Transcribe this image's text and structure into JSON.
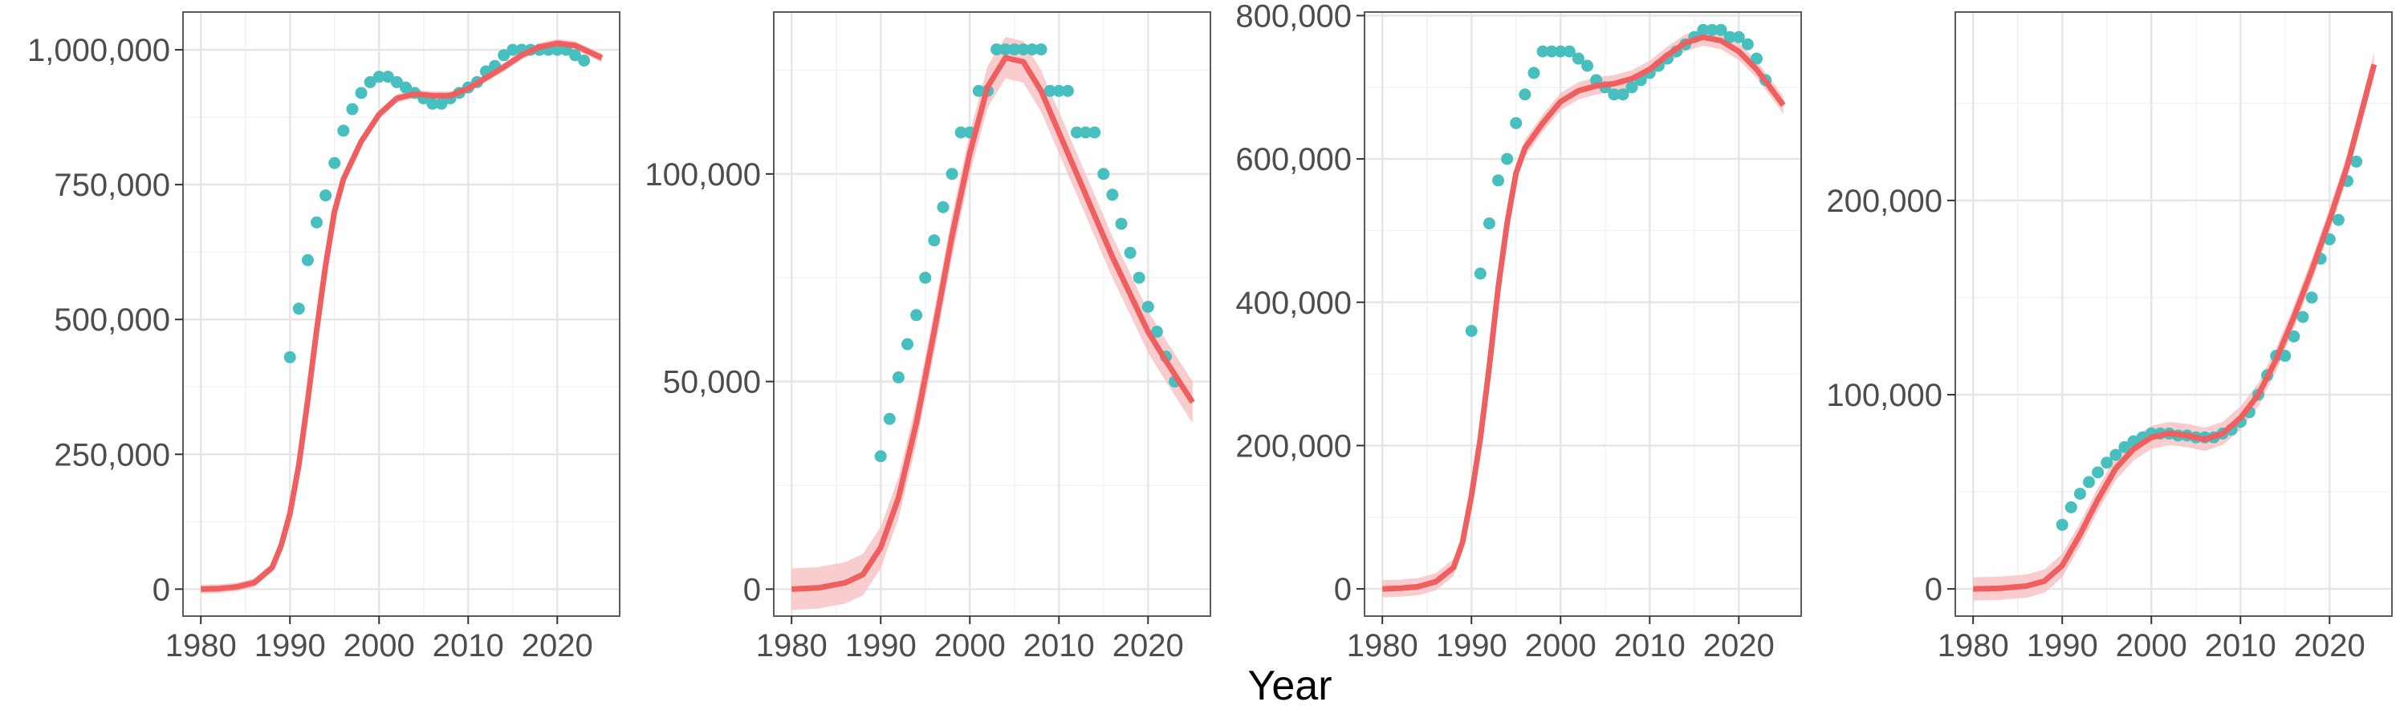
{
  "figure": {
    "xlabel": "Year"
  },
  "colors": {
    "fit_line": "#EF5F5F",
    "fit_band": "#F7BCBC",
    "points": "#48BFBF",
    "grid_major": "#E6E6E6",
    "grid_minor": "#F3F3F3",
    "panel_border": "#5A5A5A"
  },
  "chart_data": [
    {
      "type": "scatter",
      "title": "",
      "xlabel": "",
      "ylabel": "",
      "xlim": [
        1978,
        2027
      ],
      "ylim": [
        -50000,
        1070000
      ],
      "x_ticks": [
        1980,
        1990,
        2000,
        2010,
        2020
      ],
      "x_tick_labels": [
        "1980",
        "1990",
        "2000",
        "2010",
        "2020"
      ],
      "y_ticks": [
        0,
        250000,
        500000,
        750000,
        1000000
      ],
      "y_tick_labels": [
        "0",
        "250,000",
        "500,000",
        "750,000",
        "1,000,000"
      ],
      "grid": true,
      "series": [
        {
          "kind": "fit-line-with-band",
          "x": [
            1980,
            1982,
            1984,
            1986,
            1988,
            1989,
            1990,
            1991,
            1992,
            1993,
            1994,
            1995,
            1996,
            1998,
            2000,
            2002,
            2004,
            2006,
            2008,
            2010,
            2012,
            2014,
            2016,
            2018,
            2020,
            2022,
            2025
          ],
          "y": [
            0,
            1000,
            4000,
            12000,
            40000,
            80000,
            140000,
            230000,
            350000,
            480000,
            600000,
            700000,
            760000,
            830000,
            880000,
            910000,
            918000,
            915000,
            915000,
            928000,
            948000,
            968000,
            990000,
            1005000,
            1012000,
            1008000,
            985000
          ],
          "band_half_width": 8000
        },
        {
          "kind": "points",
          "x": [
            1990,
            1991,
            1992,
            1993,
            1994,
            1995,
            1996,
            1997,
            1998,
            1999,
            2000,
            2001,
            2002,
            2003,
            2004,
            2005,
            2006,
            2007,
            2008,
            2009,
            2010,
            2011,
            2012,
            2013,
            2014,
            2015,
            2016,
            2017,
            2018,
            2019,
            2020,
            2021,
            2022,
            2023
          ],
          "y": [
            430000,
            520000,
            610000,
            680000,
            730000,
            790000,
            850000,
            890000,
            920000,
            940000,
            950000,
            950000,
            940000,
            930000,
            920000,
            910000,
            900000,
            900000,
            910000,
            920000,
            930000,
            940000,
            960000,
            970000,
            990000,
            1000000,
            1000000,
            1000000,
            1000000,
            1000000,
            1000000,
            1000000,
            990000,
            980000
          ]
        }
      ]
    },
    {
      "type": "scatter",
      "title": "",
      "xlabel": "",
      "ylabel": "",
      "xlim": [
        1978,
        2027
      ],
      "ylim": [
        -6500,
        139000
      ],
      "x_ticks": [
        1980,
        1990,
        2000,
        2010,
        2020
      ],
      "x_tick_labels": [
        "1980",
        "1990",
        "2000",
        "2010",
        "2020"
      ],
      "y_ticks": [
        0,
        50000,
        100000
      ],
      "y_tick_labels": [
        "0",
        "50,000",
        "100,000"
      ],
      "grid": true,
      "series": [
        {
          "kind": "fit-line-with-band",
          "x": [
            1980,
            1983,
            1986,
            1988,
            1990,
            1992,
            1994,
            1996,
            1998,
            2000,
            2002,
            2004,
            2006,
            2008,
            2010,
            2012,
            2014,
            2016,
            2018,
            2020,
            2022,
            2025
          ],
          "y": [
            0,
            300,
            1500,
            3500,
            10000,
            22000,
            40000,
            62000,
            85000,
            105000,
            121000,
            128000,
            127000,
            120000,
            110000,
            100000,
            90000,
            80000,
            71000,
            62000,
            55000,
            45000
          ],
          "band_half_width": 5000
        },
        {
          "kind": "points",
          "x": [
            1990,
            1991,
            1992,
            1993,
            1994,
            1995,
            1996,
            1997,
            1998,
            1999,
            2000,
            2001,
            2002,
            2003,
            2004,
            2005,
            2006,
            2007,
            2008,
            2009,
            2010,
            2011,
            2012,
            2013,
            2014,
            2015,
            2016,
            2017,
            2018,
            2019,
            2020,
            2021,
            2022,
            2023
          ],
          "y": [
            32000,
            41000,
            51000,
            59000,
            66000,
            75000,
            84000,
            92000,
            100000,
            110000,
            110000,
            120000,
            120000,
            130000,
            130000,
            130000,
            130000,
            130000,
            130000,
            120000,
            120000,
            120000,
            110000,
            110000,
            110000,
            100000,
            95000,
            88000,
            81000,
            75000,
            68000,
            62000,
            56000,
            50000
          ]
        }
      ]
    },
    {
      "type": "scatter",
      "title": "",
      "xlabel": "",
      "ylabel": "",
      "xlim": [
        1978,
        2027
      ],
      "ylim": [
        -38000,
        805000
      ],
      "x_ticks": [
        1980,
        1990,
        2000,
        2010,
        2020
      ],
      "x_tick_labels": [
        "1980",
        "1990",
        "2000",
        "2010",
        "2020"
      ],
      "y_ticks": [
        0,
        200000,
        400000,
        600000,
        800000
      ],
      "y_tick_labels": [
        "0",
        "200,000",
        "400,000",
        "600,000",
        "800,000"
      ],
      "grid": true,
      "series": [
        {
          "kind": "fit-line-with-band",
          "x": [
            1980,
            1982,
            1984,
            1986,
            1988,
            1989,
            1990,
            1991,
            1992,
            1993,
            1994,
            1995,
            1996,
            1998,
            2000,
            2002,
            2004,
            2006,
            2008,
            2010,
            2012,
            2014,
            2016,
            2018,
            2020,
            2022,
            2025
          ],
          "y": [
            0,
            1000,
            3000,
            10000,
            30000,
            65000,
            130000,
            210000,
            310000,
            420000,
            510000,
            580000,
            615000,
            650000,
            680000,
            695000,
            702000,
            705000,
            712000,
            725000,
            745000,
            762000,
            770000,
            765000,
            750000,
            725000,
            675000
          ],
          "band_half_width": 12000
        },
        {
          "kind": "points",
          "x": [
            1990,
            1991,
            1992,
            1993,
            1994,
            1995,
            1996,
            1997,
            1998,
            1999,
            2000,
            2001,
            2002,
            2003,
            2004,
            2005,
            2006,
            2007,
            2008,
            2009,
            2010,
            2011,
            2012,
            2013,
            2014,
            2015,
            2016,
            2017,
            2018,
            2019,
            2020,
            2021,
            2022,
            2023
          ],
          "y": [
            360000,
            440000,
            510000,
            570000,
            600000,
            650000,
            690000,
            720000,
            750000,
            750000,
            750000,
            750000,
            740000,
            730000,
            710000,
            700000,
            690000,
            690000,
            700000,
            710000,
            720000,
            730000,
            740000,
            750000,
            760000,
            770000,
            780000,
            780000,
            780000,
            770000,
            770000,
            760000,
            740000,
            710000
          ]
        }
      ]
    },
    {
      "type": "scatter",
      "title": "",
      "xlabel": "",
      "ylabel": "",
      "xlim": [
        1978,
        2027
      ],
      "ylim": [
        -14000,
        297000
      ],
      "x_ticks": [
        1980,
        1990,
        2000,
        2010,
        2020
      ],
      "x_tick_labels": [
        "1980",
        "1990",
        "2000",
        "2010",
        "2020"
      ],
      "y_ticks": [
        0,
        100000,
        200000
      ],
      "y_tick_labels": [
        "0",
        "100,000",
        "200,000"
      ],
      "grid": true,
      "series": [
        {
          "kind": "fit-line-with-band",
          "x": [
            1980,
            1983,
            1986,
            1988,
            1990,
            1992,
            1994,
            1996,
            1998,
            2000,
            2002,
            2004,
            2006,
            2008,
            2010,
            2012,
            2014,
            2016,
            2018,
            2020,
            2022,
            2025
          ],
          "y": [
            0,
            300,
            1500,
            4000,
            12000,
            28000,
            46000,
            62000,
            72000,
            78000,
            80000,
            79000,
            77000,
            80000,
            88000,
            100000,
            118000,
            140000,
            164000,
            190000,
            218000,
            270000
          ],
          "band_half_width": 6000
        },
        {
          "kind": "points",
          "x": [
            1990,
            1991,
            1992,
            1993,
            1994,
            1995,
            1996,
            1997,
            1998,
            1999,
            2000,
            2001,
            2002,
            2003,
            2004,
            2005,
            2006,
            2007,
            2008,
            2009,
            2010,
            2011,
            2012,
            2013,
            2014,
            2015,
            2016,
            2017,
            2018,
            2019,
            2020,
            2021,
            2022,
            2023
          ],
          "y": [
            33000,
            42000,
            49000,
            55000,
            60000,
            65000,
            69000,
            73000,
            76000,
            78000,
            80000,
            80000,
            80000,
            79000,
            79000,
            78000,
            78000,
            78000,
            80000,
            82000,
            86000,
            91000,
            100000,
            110000,
            120000,
            120000,
            130000,
            140000,
            150000,
            170000,
            180000,
            190000,
            210000,
            220000
          ]
        }
      ]
    }
  ]
}
